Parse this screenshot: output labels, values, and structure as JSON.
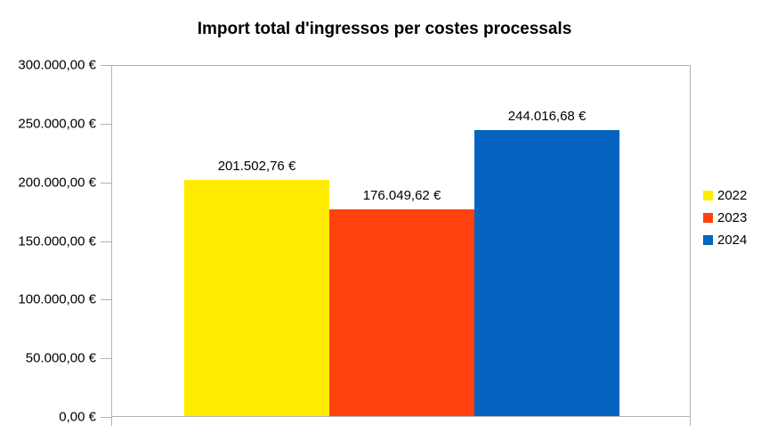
{
  "chart_data": {
    "type": "bar",
    "title": "Import total d'ingressos per costes processals",
    "categories": [
      ""
    ],
    "series": [
      {
        "name": "2022",
        "value": 201502.76,
        "label": "201.502,76 €",
        "color": "#FFEC00"
      },
      {
        "name": "2023",
        "value": 176049.62,
        "label": "176.049,62 €",
        "color": "#FF420E"
      },
      {
        "name": "2024",
        "value": 244016.68,
        "label": "244.016,68 €",
        "color": "#0563C1"
      }
    ],
    "ylabel": "",
    "xlabel": "",
    "ylim": [
      0,
      300000
    ],
    "y_tick_step": 50000,
    "y_tick_labels": [
      "0,00 €",
      "50.000,00 €",
      "100.000,00 €",
      "150.000,00 €",
      "200.000,00 €",
      "250.000,00 €",
      "300.000,00 €"
    ],
    "grid": false,
    "legend_position": "right",
    "axis_color": "#B3B3B3",
    "text_color": "#000000",
    "background_color": "#FFFFFF"
  }
}
